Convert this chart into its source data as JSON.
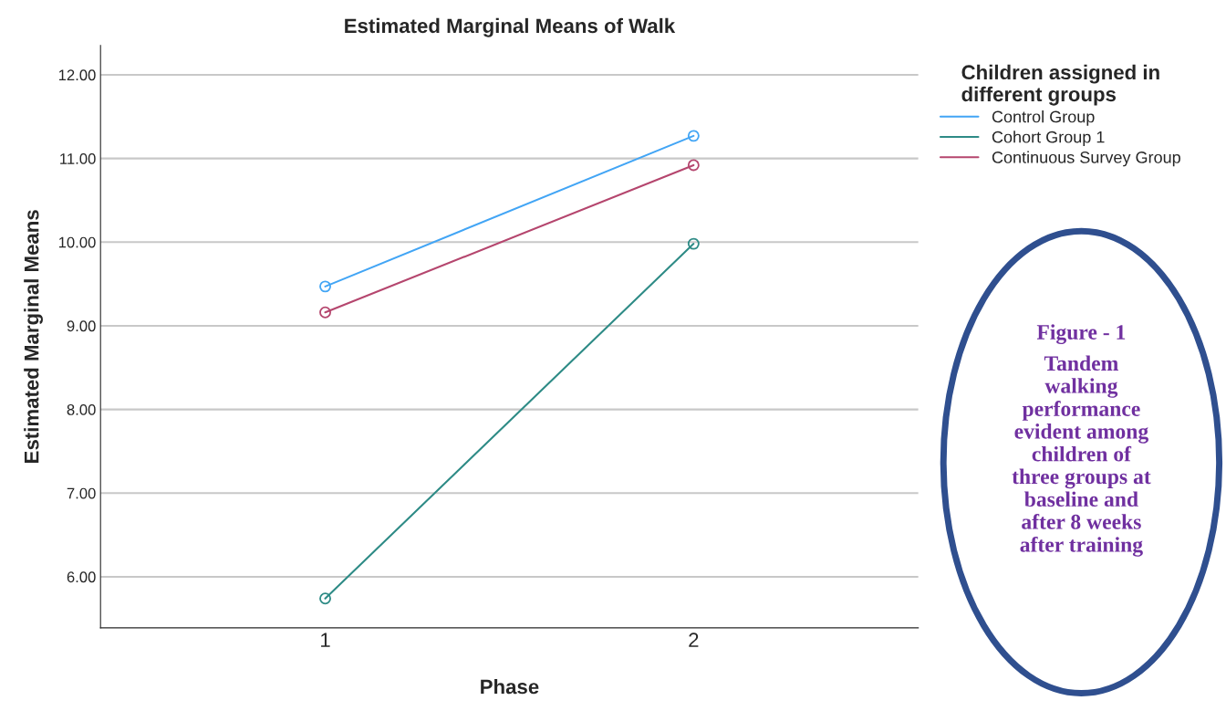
{
  "chart_data": {
    "type": "line",
    "title": "Estimated Marginal Means of Walk",
    "xlabel": "Phase",
    "ylabel": "Estimated Marginal Means",
    "legend_title": "Children assigned in\ndifferent groups",
    "categories": [
      "1",
      "2"
    ],
    "series": [
      {
        "name": "Control Group",
        "color": "#42a5f5",
        "values": [
          9.47,
          11.27
        ]
      },
      {
        "name": "Cohort Group 1",
        "color": "#2e8b86",
        "values": [
          5.74,
          9.98
        ]
      },
      {
        "name": "Continuous Survey Group",
        "color": "#b5466e",
        "values": [
          9.16,
          10.92
        ]
      }
    ],
    "ylim": [
      5.39,
      12.35
    ],
    "yticks": [
      {
        "value": 6,
        "label": "6.00"
      },
      {
        "value": 7,
        "label": "7.00"
      },
      {
        "value": 8,
        "label": "8.00"
      },
      {
        "value": 9,
        "label": "9.00"
      },
      {
        "value": 10,
        "label": "10.00"
      },
      {
        "value": 11,
        "label": "11.00"
      },
      {
        "value": 12,
        "label": "12.00"
      }
    ],
    "grid": "y",
    "legend": "top right",
    "marker": "circle",
    "line_style": "solid",
    "annotations": [
      "Figure - 1",
      "Tandem\nwalking\nperformance\nevident among\nchildren of\nthree groups at\nbaseline and\nafter 8 weeks\nafter training"
    ]
  }
}
